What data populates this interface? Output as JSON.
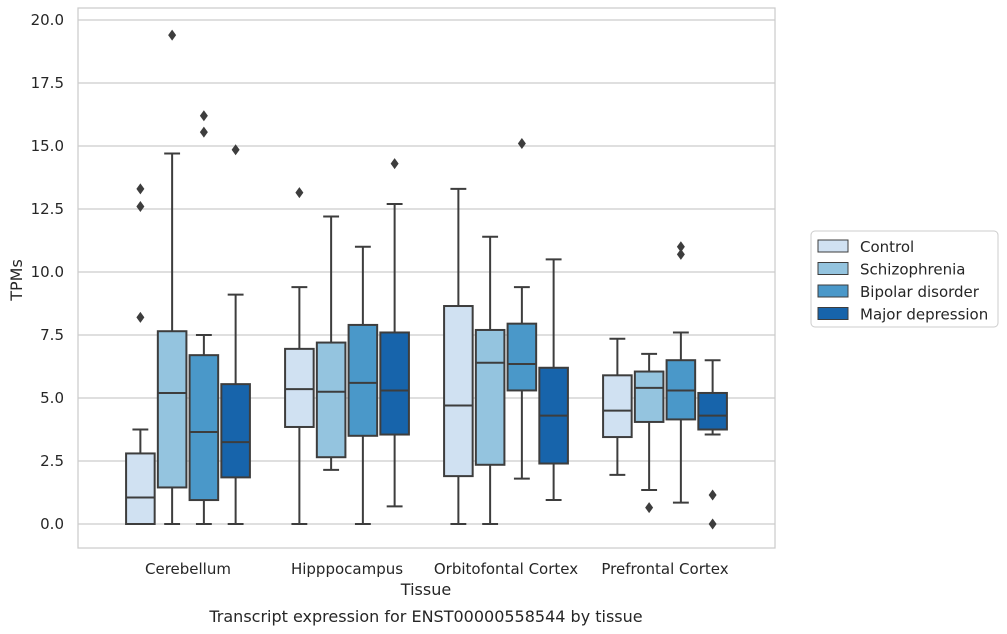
{
  "caption": "Transcript expression for ENST00000558544 by tissue",
  "chart_data": {
    "type": "box",
    "xlabel": "Tissue",
    "ylabel": "TPMs",
    "ylim": [
      -0.9,
      20.4
    ],
    "yticks": [
      "0.0",
      "2.5",
      "5.0",
      "7.5",
      "10.0",
      "12.5",
      "15.0",
      "17.5",
      "20.0"
    ],
    "categories": [
      "Cerebellum",
      "Hipppocampus",
      "Orbitofontal Cortex",
      "Prefrontal Cortex"
    ],
    "grid": "horizontal",
    "legend_position": "right",
    "series": [
      {
        "name": "Control",
        "color": "#d0e1f2",
        "boxes": [
          {
            "q1": 0.0,
            "median": 1.05,
            "q3": 2.8,
            "whisker_low": 0.0,
            "whisker_high": 3.75,
            "outliers": [
              8.2,
              12.6,
              13.3
            ]
          },
          {
            "q1": 3.85,
            "median": 5.35,
            "q3": 6.95,
            "whisker_low": 0.0,
            "whisker_high": 9.4,
            "outliers": [
              13.15
            ]
          },
          {
            "q1": 1.9,
            "median": 4.7,
            "q3": 8.65,
            "whisker_low": 0.0,
            "whisker_high": 13.3,
            "outliers": []
          },
          {
            "q1": 3.45,
            "median": 4.5,
            "q3": 5.9,
            "whisker_low": 1.95,
            "whisker_high": 7.35,
            "outliers": []
          }
        ]
      },
      {
        "name": "Schizophrenia",
        "color": "#94c4df",
        "boxes": [
          {
            "q1": 1.45,
            "median": 5.2,
            "q3": 7.65,
            "whisker_low": 0.0,
            "whisker_high": 14.7,
            "outliers": [
              19.4
            ]
          },
          {
            "q1": 2.65,
            "median": 5.25,
            "q3": 7.2,
            "whisker_low": 2.15,
            "whisker_high": 12.2,
            "outliers": []
          },
          {
            "q1": 2.35,
            "median": 6.4,
            "q3": 7.7,
            "whisker_low": 0.0,
            "whisker_high": 11.4,
            "outliers": []
          },
          {
            "q1": 4.05,
            "median": 5.4,
            "q3": 6.05,
            "whisker_low": 1.35,
            "whisker_high": 6.75,
            "outliers": [
              0.65
            ]
          }
        ]
      },
      {
        "name": "Bipolar disorder",
        "color": "#4a98c9",
        "boxes": [
          {
            "q1": 0.95,
            "median": 3.65,
            "q3": 6.7,
            "whisker_low": 0.0,
            "whisker_high": 7.5,
            "outliers": [
              15.55,
              16.2
            ]
          },
          {
            "q1": 3.5,
            "median": 5.6,
            "q3": 7.9,
            "whisker_low": 0.0,
            "whisker_high": 11.0,
            "outliers": []
          },
          {
            "q1": 5.3,
            "median": 6.35,
            "q3": 7.95,
            "whisker_low": 1.8,
            "whisker_high": 9.4,
            "outliers": [
              15.1
            ]
          },
          {
            "q1": 4.15,
            "median": 5.3,
            "q3": 6.5,
            "whisker_low": 0.85,
            "whisker_high": 7.6,
            "outliers": [
              11.0,
              10.7
            ]
          }
        ]
      },
      {
        "name": "Major depression",
        "color": "#1764ab",
        "boxes": [
          {
            "q1": 1.85,
            "median": 3.25,
            "q3": 5.55,
            "whisker_low": 0.0,
            "whisker_high": 9.1,
            "outliers": [
              14.85
            ]
          },
          {
            "q1": 3.55,
            "median": 5.3,
            "q3": 7.6,
            "whisker_low": 0.7,
            "whisker_high": 12.7,
            "outliers": [
              14.3
            ]
          },
          {
            "q1": 2.4,
            "median": 4.3,
            "q3": 6.2,
            "whisker_low": 0.95,
            "whisker_high": 10.5,
            "outliers": []
          },
          {
            "q1": 3.75,
            "median": 4.3,
            "q3": 5.2,
            "whisker_low": 3.55,
            "whisker_high": 6.5,
            "outliers": [
              1.15,
              0.0
            ]
          }
        ]
      }
    ]
  }
}
